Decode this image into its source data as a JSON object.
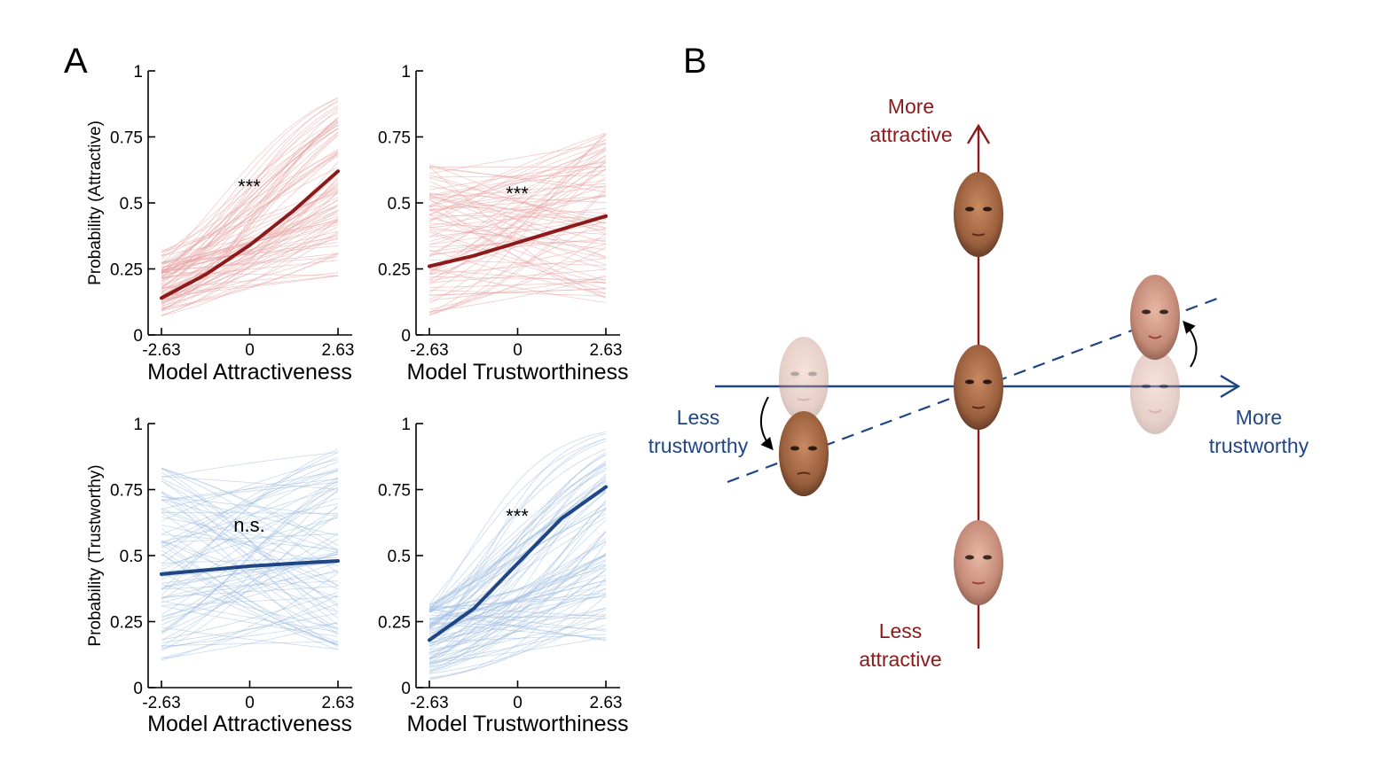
{
  "panel_labels": [
    "A",
    "B"
  ],
  "colors": {
    "attractive": "#8b1a1a",
    "attractive_light": "#e8a3a3",
    "trustworthy": "#1f4585",
    "trustworthy_light": "#9dbbe0",
    "axis": "#000000"
  },
  "chart_data": [
    {
      "type": "line",
      "xlabel": "Model Attractiveness",
      "ylabel": "Probability (Attractive)",
      "xticks": [
        "-2.63",
        "0",
        "2.63"
      ],
      "yticks": [
        "0",
        "0.25",
        "0.5",
        "0.75",
        "1"
      ],
      "xlim": [
        -2.63,
        2.63
      ],
      "ylim": [
        0,
        1
      ],
      "annotation": "***",
      "mean_curve": {
        "x": [
          -2.63,
          -1.3,
          0,
          1.3,
          2.63
        ],
        "y": [
          0.14,
          0.23,
          0.34,
          0.47,
          0.62
        ]
      },
      "subject_curves": {
        "count": 90,
        "y_range_at_min_x": [
          0.07,
          0.32
        ],
        "y_range_at_max_x": [
          0.22,
          0.9
        ]
      },
      "grid": false
    },
    {
      "type": "line",
      "xlabel": "Model Trustworthiness",
      "ylabel": "",
      "xticks": [
        "-2.63",
        "0",
        "2.63"
      ],
      "yticks": [
        "0",
        "0.25",
        "0.5",
        "0.75",
        "1"
      ],
      "xlim": [
        -2.63,
        2.63
      ],
      "ylim": [
        0,
        1
      ],
      "annotation": "***",
      "mean_curve": {
        "x": [
          -2.63,
          -1.3,
          0,
          1.3,
          2.63
        ],
        "y": [
          0.26,
          0.3,
          0.35,
          0.4,
          0.45
        ]
      },
      "subject_curves": {
        "count": 90,
        "y_range_at_min_x": [
          0.06,
          0.65
        ],
        "y_range_at_max_x": [
          0.12,
          0.77
        ]
      },
      "grid": false
    },
    {
      "type": "line",
      "xlabel": "Model Attractiveness",
      "ylabel": "Probability (Trustworthy)",
      "xticks": [
        "-2.63",
        "0",
        "2.63"
      ],
      "yticks": [
        "0",
        "0.25",
        "0.5",
        "0.75",
        "1"
      ],
      "xlim": [
        -2.63,
        2.63
      ],
      "ylim": [
        0,
        1
      ],
      "annotation": "n.s.",
      "mean_curve": {
        "x": [
          -2.63,
          -1.3,
          0,
          1.3,
          2.63
        ],
        "y": [
          0.43,
          0.445,
          0.46,
          0.47,
          0.48
        ]
      },
      "subject_curves": {
        "count": 90,
        "y_range_at_min_x": [
          0.1,
          0.86
        ],
        "y_range_at_max_x": [
          0.14,
          0.92
        ]
      },
      "grid": false
    },
    {
      "type": "line",
      "xlabel": "Model Trustworthiness",
      "ylabel": "",
      "xticks": [
        "-2.63",
        "0",
        "2.63"
      ],
      "yticks": [
        "0",
        "0.25",
        "0.5",
        "0.75",
        "1"
      ],
      "xlim": [
        -2.63,
        2.63
      ],
      "ylim": [
        0,
        1
      ],
      "annotation": "***",
      "mean_curve": {
        "x": [
          -2.63,
          -1.3,
          0,
          1.3,
          2.63
        ],
        "y": [
          0.18,
          0.3,
          0.47,
          0.64,
          0.76
        ]
      },
      "subject_curves": {
        "count": 90,
        "y_range_at_min_x": [
          0.03,
          0.32
        ],
        "y_range_at_max_x": [
          0.17,
          0.97
        ]
      },
      "grid": false
    }
  ],
  "diagram": {
    "vertical_axis": {
      "top_label_line1": "More",
      "top_label_line2": "attractive",
      "bottom_label_line1": "Less",
      "bottom_label_line2": "attractive"
    },
    "horizontal_axis": {
      "left_label_line1": "Less",
      "left_label_line2": "trustworthy",
      "right_label_line1": "More",
      "right_label_line2": "trustworthy"
    },
    "faces": [
      "face-top",
      "face-center",
      "face-bottom",
      "face-left-faded",
      "face-left",
      "face-right-faded",
      "face-right"
    ]
  }
}
